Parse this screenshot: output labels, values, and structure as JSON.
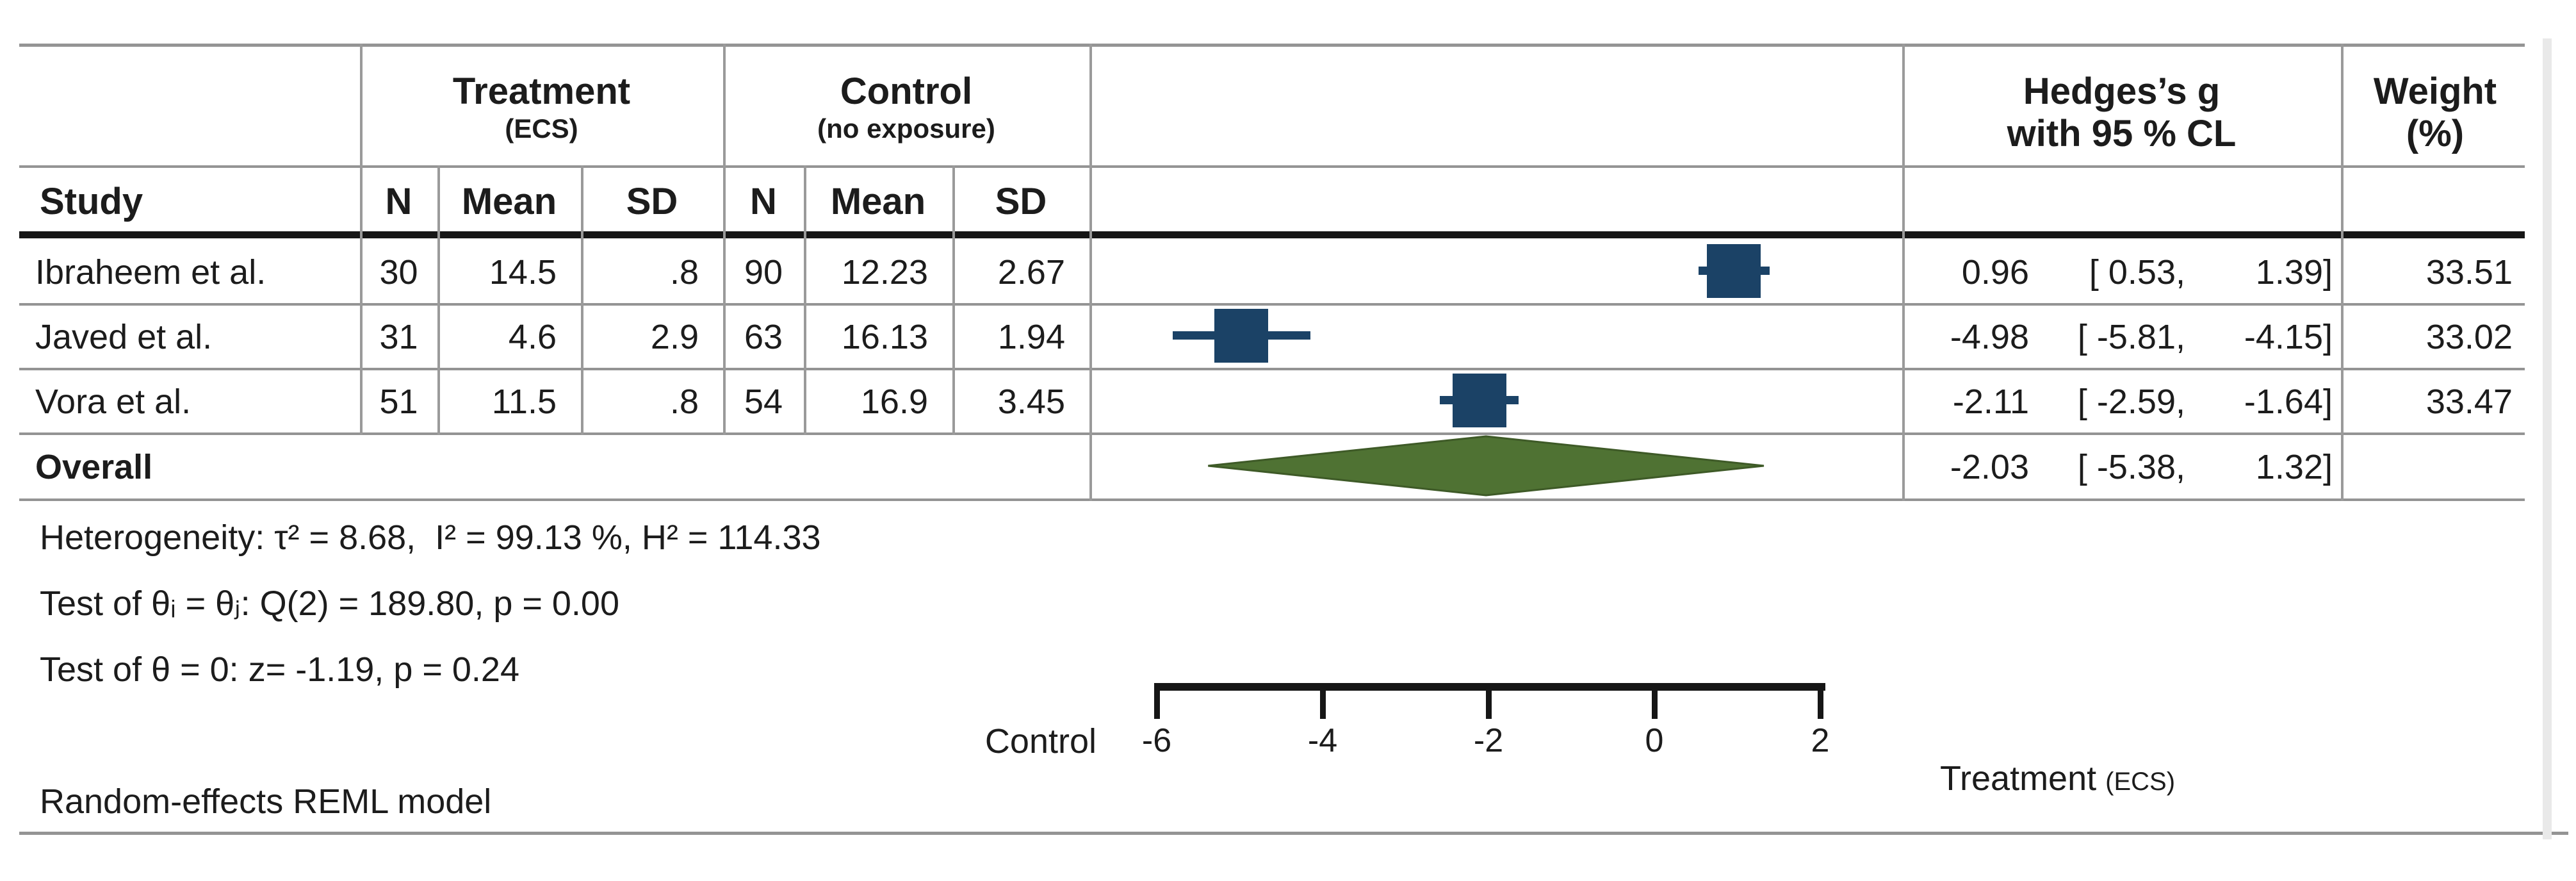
{
  "table": {
    "group_headers": {
      "treatment": "Treatment",
      "treatment_sub": "(ECS)",
      "control": "Control",
      "control_sub": "(no exposure)",
      "effect_line1": "Hedges’s g",
      "effect_line2": "with 95 % CL",
      "weight_line1": "Weight",
      "weight_line2": "(%)"
    },
    "col_headers": {
      "study": "Study",
      "n1": "N",
      "mean1": "Mean",
      "sd1": "SD",
      "n2": "N",
      "mean2": "Mean",
      "sd2": "SD"
    },
    "rows": [
      {
        "study": "Ibraheem et al.",
        "t_n": "30",
        "t_mean": "14.5",
        "t_sd": ".8",
        "c_n": "90",
        "c_mean": "12.23",
        "c_sd": "2.67",
        "est": "0.96",
        "ci_low": "[ 0.53,",
        "ci_high": "1.39]",
        "weight": "33.51"
      },
      {
        "study": "Javed et al.",
        "t_n": "31",
        "t_mean": "4.6",
        "t_sd": "2.9",
        "c_n": "63",
        "c_mean": "16.13",
        "c_sd": "1.94",
        "est": "-4.98",
        "ci_low": "[ -5.81,",
        "ci_high": "-4.15]",
        "weight": "33.02"
      },
      {
        "study": "Vora et al.",
        "t_n": "51",
        "t_mean": "11.5",
        "t_sd": ".8",
        "c_n": "54",
        "c_mean": "16.9",
        "c_sd": "3.45",
        "est": "-2.11",
        "ci_low": "[ -2.59,",
        "ci_high": "-1.64]",
        "weight": "33.47"
      }
    ],
    "overall": {
      "label": "Overall",
      "est": "-2.03",
      "ci_low": "[ -5.38,",
      "ci_high": "1.32]"
    }
  },
  "stats": {
    "heterogeneity": "Heterogeneity: τ² = 8.68,  I² = 99.13 %, H² = 114.33",
    "test_group": "Test of θᵢ = θⱼ: Q(2) = 189.80, p = 0.00",
    "test_overall": "Test of θ = 0: z= -1.19, p = 0.24"
  },
  "footer": {
    "model": "Random-effects REML model"
  },
  "axis": {
    "left_label": "Control",
    "right_label": "Treatment",
    "right_label_sub": "(ECS)",
    "ticks": [
      -6,
      -4,
      -2,
      0,
      2
    ]
  },
  "colors": {
    "marker_blue": "#1b4266",
    "diamond_green": "#4f7233",
    "diamond_edge": "#3e5a27",
    "rule_gray": "#949494",
    "line_black": "#161616"
  },
  "chart_data": {
    "type": "forest",
    "effect_measure": "Hedges's g",
    "ci_level": "95 % CL",
    "x_ticks": [
      -6,
      -4,
      -2,
      0,
      2
    ],
    "xlim": [
      -6,
      2
    ],
    "xlabel_left": "Control",
    "xlabel_right": "Treatment (ECS)",
    "studies": [
      {
        "study": "Ibraheem et al.",
        "treatment": {
          "n": 30,
          "mean": 14.5,
          "sd": 0.8
        },
        "control": {
          "n": 90,
          "mean": 12.23,
          "sd": 2.67
        },
        "g": 0.96,
        "ci": [
          0.53,
          1.39
        ],
        "weight_pct": 33.51
      },
      {
        "study": "Javed et al.",
        "treatment": {
          "n": 31,
          "mean": 4.6,
          "sd": 2.9
        },
        "control": {
          "n": 63,
          "mean": 16.13,
          "sd": 1.94
        },
        "g": -4.98,
        "ci": [
          -5.81,
          -4.15
        ],
        "weight_pct": 33.02
      },
      {
        "study": "Vora et al.",
        "treatment": {
          "n": 51,
          "mean": 11.5,
          "sd": 0.8
        },
        "control": {
          "n": 54,
          "mean": 16.9,
          "sd": 3.45
        },
        "g": -2.11,
        "ci": [
          -2.59,
          -1.64
        ],
        "weight_pct": 33.47
      }
    ],
    "overall": {
      "g": -2.03,
      "ci": [
        -5.38,
        1.32
      ]
    },
    "heterogeneity": {
      "tau2": 8.68,
      "I2_pct": 99.13,
      "H2": 114.33
    },
    "test_group_equality": {
      "Q": 189.8,
      "df": 2,
      "p": 0.0
    },
    "test_overall_effect": {
      "z": -1.19,
      "p": 0.24
    },
    "model": "Random-effects REML model"
  }
}
